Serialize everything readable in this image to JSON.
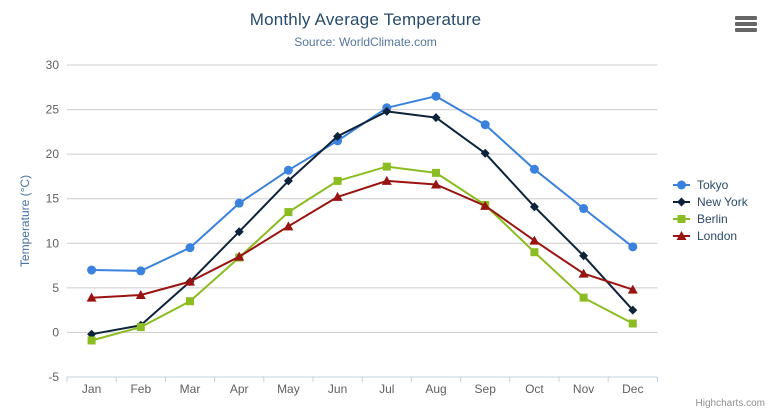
{
  "chart_data": {
    "type": "line",
    "title": "Monthly Average Temperature",
    "subtitle": "Source: WorldClimate.com",
    "categories": [
      "Jan",
      "Feb",
      "Mar",
      "Apr",
      "May",
      "Jun",
      "Jul",
      "Aug",
      "Sep",
      "Oct",
      "Nov",
      "Dec"
    ],
    "xlabel": "",
    "ylabel": "Temperature (°C)",
    "ylim": [
      -5,
      30
    ],
    "yticks": [
      -5,
      0,
      5,
      10,
      15,
      20,
      25,
      30
    ],
    "grid": true,
    "legend_position": "right",
    "series": [
      {
        "name": "Tokyo",
        "color": "#3b82de",
        "marker": "circle",
        "values": [
          7.0,
          6.9,
          9.5,
          14.5,
          18.2,
          21.5,
          25.2,
          26.5,
          23.3,
          18.3,
          13.9,
          9.6
        ]
      },
      {
        "name": "New York",
        "color": "#0d233a",
        "marker": "diamond",
        "values": [
          -0.2,
          0.8,
          5.7,
          11.3,
          17.0,
          22.0,
          24.8,
          24.1,
          20.1,
          14.1,
          8.6,
          2.5
        ]
      },
      {
        "name": "Berlin",
        "color": "#8bbc21",
        "marker": "square",
        "values": [
          -0.9,
          0.6,
          3.5,
          8.4,
          13.5,
          17.0,
          18.6,
          17.9,
          14.3,
          9.0,
          3.9,
          1.0
        ]
      },
      {
        "name": "London",
        "color": "#991410",
        "marker": "triangle",
        "values": [
          3.9,
          4.2,
          5.7,
          8.5,
          11.9,
          15.2,
          17.0,
          16.6,
          14.2,
          10.3,
          6.6,
          4.8
        ]
      }
    ]
  },
  "colors": {
    "grid": "#cccccc",
    "axis_line": "#c0d0e0",
    "tick_label": "#606060",
    "title": "#274b6d",
    "subtitle": "#55759b",
    "axis_title": "#4872a7",
    "legend_text": "#2c4a66",
    "credit": "#909090"
  },
  "credits": {
    "label": "Highcharts.com"
  },
  "menu": {
    "tooltip": "Chart context menu"
  }
}
